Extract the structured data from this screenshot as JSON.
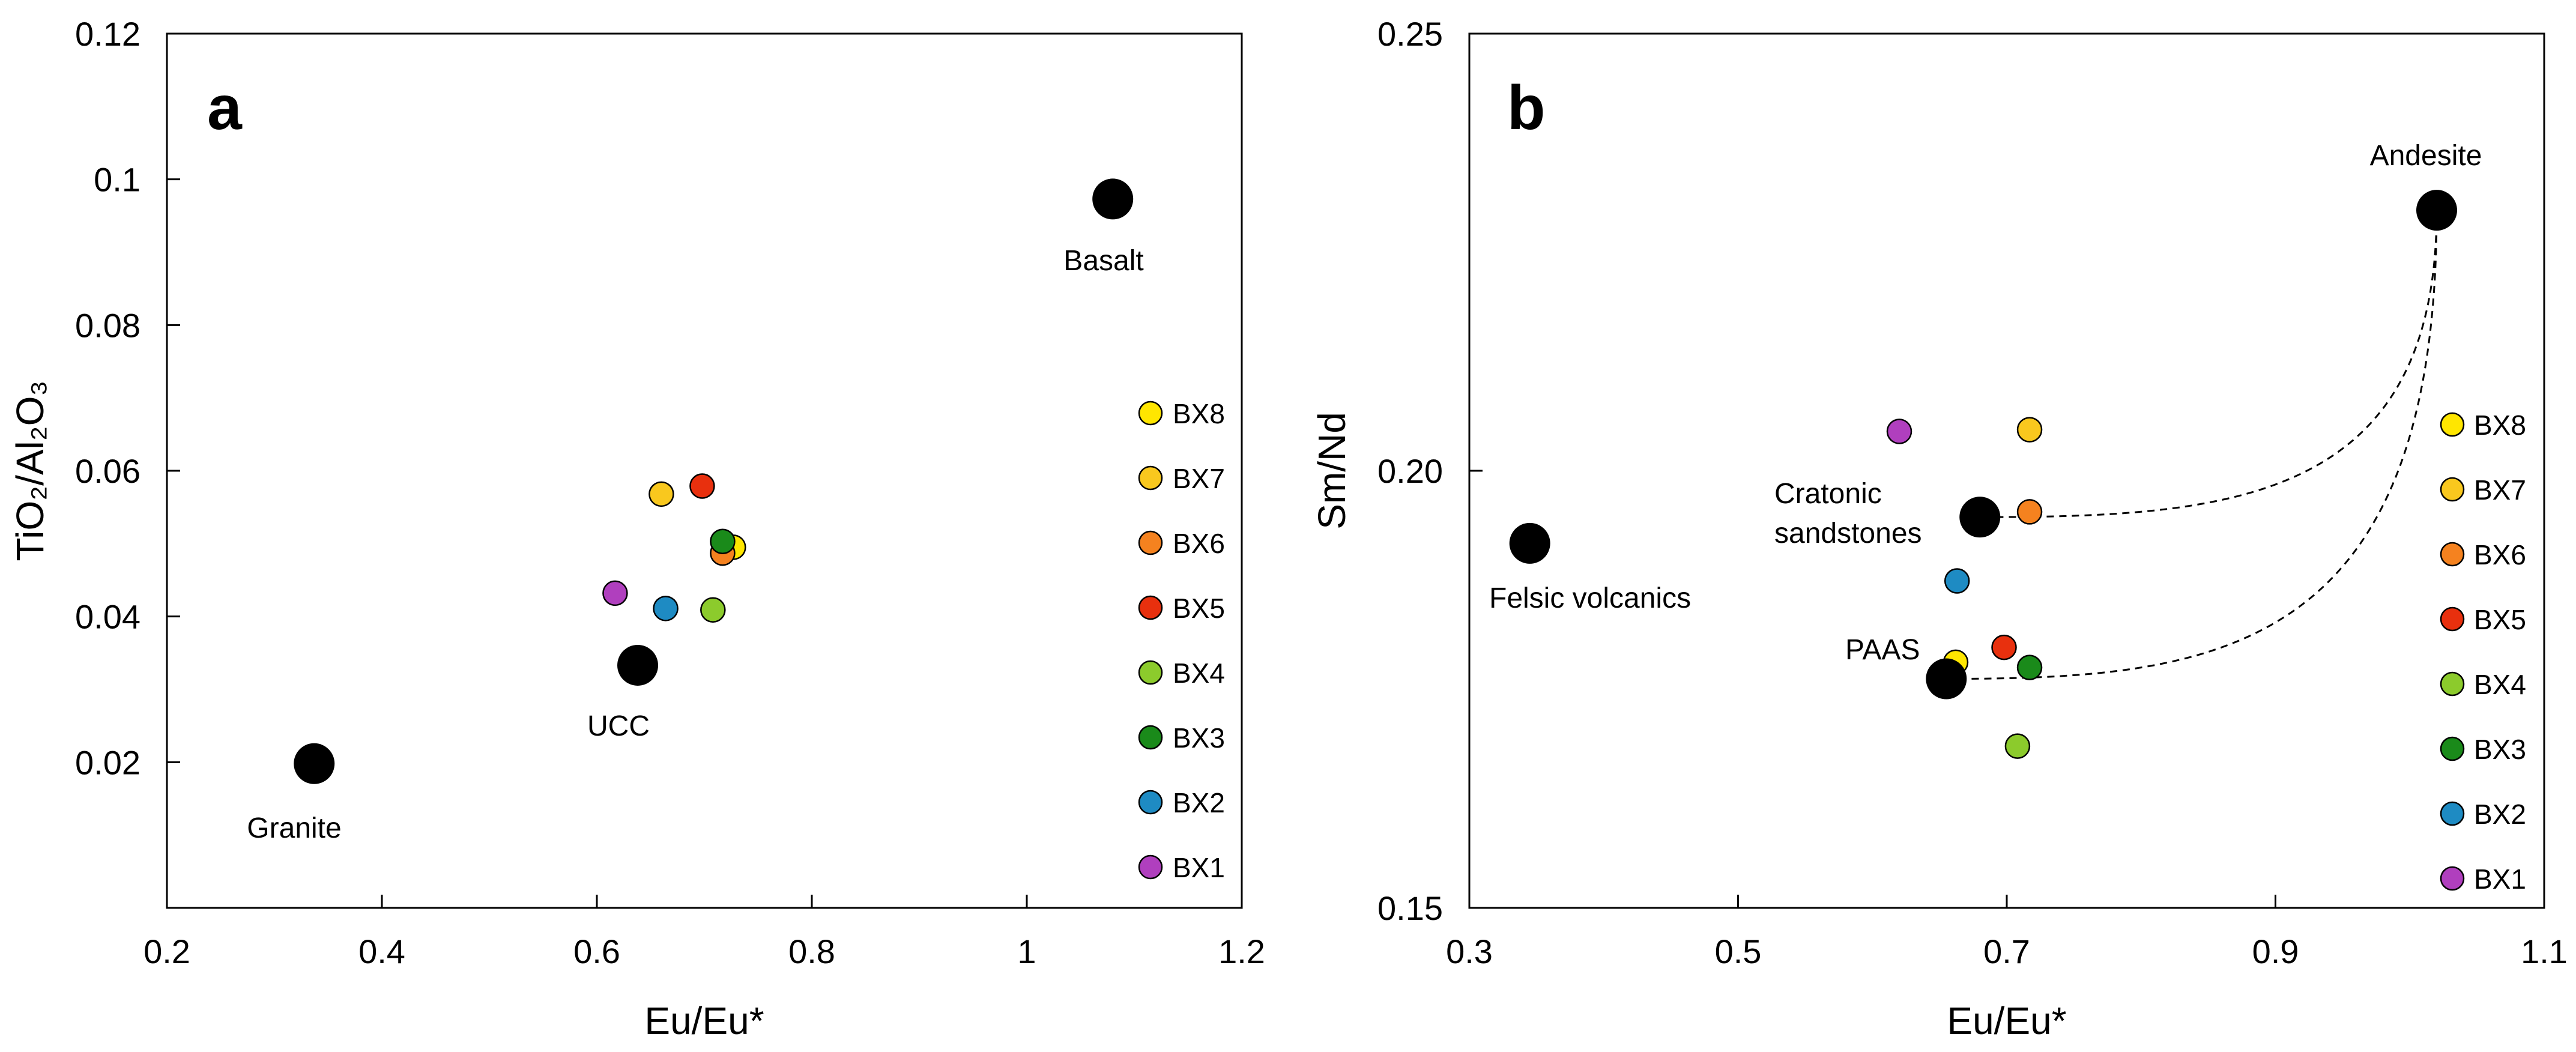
{
  "colors": {
    "BX8": "#FFE600",
    "BX7": "#F9C81E",
    "BX6": "#F5821F",
    "BX5": "#E8300E",
    "BX4": "#8CCB2C",
    "BX3": "#1A8A1A",
    "BX2": "#1E8BC3",
    "BX1": "#B03FBE",
    "reference": "#000000"
  },
  "chart_data": [
    {
      "panel": "a",
      "type": "scatter",
      "xlabel": "Eu/Eu*",
      "ylabel": "TiO₂/Al₂O₃",
      "xlim": [
        0.2,
        1.2
      ],
      "ylim": [
        0.0,
        0.12
      ],
      "xticks": [
        0.2,
        0.4,
        0.6,
        0.8,
        1.0,
        1.2
      ],
      "xtick_labels": [
        "0.2",
        "0.4",
        "0.6",
        "0.8",
        "1",
        "1.2"
      ],
      "yticks": [
        0.02,
        0.04,
        0.06,
        0.08,
        0.1,
        0.12
      ],
      "ytick_labels": [
        "0.02",
        "0.04",
        "0.06",
        "0.08",
        "0.1",
        "0.12"
      ],
      "reference_points": [
        {
          "name": "Granite",
          "x": 0.337,
          "y": 0.0198
        },
        {
          "name": "UCC",
          "x": 0.638,
          "y": 0.0333
        },
        {
          "name": "Basalt",
          "x": 1.08,
          "y": 0.0973
        }
      ],
      "samples": [
        {
          "name": "BX8",
          "x": 0.727,
          "y": 0.0495
        },
        {
          "name": "BX7",
          "x": 0.66,
          "y": 0.0568
        },
        {
          "name": "BX6",
          "x": 0.717,
          "y": 0.0487
        },
        {
          "name": "BX5",
          "x": 0.698,
          "y": 0.0579
        },
        {
          "name": "BX4",
          "x": 0.708,
          "y": 0.0409
        },
        {
          "name": "BX3",
          "x": 0.717,
          "y": 0.0503
        },
        {
          "name": "BX2",
          "x": 0.664,
          "y": 0.0411
        },
        {
          "name": "BX1",
          "x": 0.617,
          "y": 0.0432
        }
      ],
      "legend": [
        "BX8",
        "BX7",
        "BX6",
        "BX5",
        "BX4",
        "BX3",
        "BX2",
        "BX1"
      ],
      "legend_position": "right",
      "grid": false
    },
    {
      "panel": "b",
      "type": "scatter",
      "xlabel": "Eu/Eu*",
      "ylabel": "Sm/Nd",
      "xlim": [
        0.3,
        1.1
      ],
      "ylim": [
        0.15,
        0.25
      ],
      "xticks": [
        0.3,
        0.5,
        0.7,
        0.9,
        1.1
      ],
      "xtick_labels": [
        "0.3",
        "0.5",
        "0.7",
        "0.9",
        "1.1"
      ],
      "yticks": [
        0.15,
        0.2,
        0.25
      ],
      "ytick_labels": [
        "0.15",
        "0.20",
        "0.25"
      ],
      "reference_points": [
        {
          "name": "Felsic volcanics",
          "x": 0.345,
          "y": 0.1917
        },
        {
          "name": "Cratonic sandstones",
          "x": 0.68,
          "y": 0.1947
        },
        {
          "name": "PAAS",
          "x": 0.655,
          "y": 0.1762
        },
        {
          "name": "Andesite",
          "x": 1.02,
          "y": 0.2298
        }
      ],
      "samples": [
        {
          "name": "BX8",
          "x": 0.662,
          "y": 0.1781
        },
        {
          "name": "BX7",
          "x": 0.717,
          "y": 0.2047
        },
        {
          "name": "BX6",
          "x": 0.717,
          "y": 0.1953
        },
        {
          "name": "BX5",
          "x": 0.698,
          "y": 0.1798
        },
        {
          "name": "BX4",
          "x": 0.708,
          "y": 0.1685
        },
        {
          "name": "BX3",
          "x": 0.717,
          "y": 0.1775
        },
        {
          "name": "BX2",
          "x": 0.663,
          "y": 0.1874
        },
        {
          "name": "BX1",
          "x": 0.62,
          "y": 0.2045
        }
      ],
      "trend_curves": [
        {
          "from": "Andesite",
          "to": "Cratonic sandstones",
          "style": "dashed"
        },
        {
          "from": "Andesite",
          "to": "PAAS",
          "style": "dashed"
        }
      ],
      "legend": [
        "BX8",
        "BX7",
        "BX6",
        "BX5",
        "BX4",
        "BX3",
        "BX2",
        "BX1"
      ],
      "legend_position": "right",
      "grid": false
    }
  ]
}
